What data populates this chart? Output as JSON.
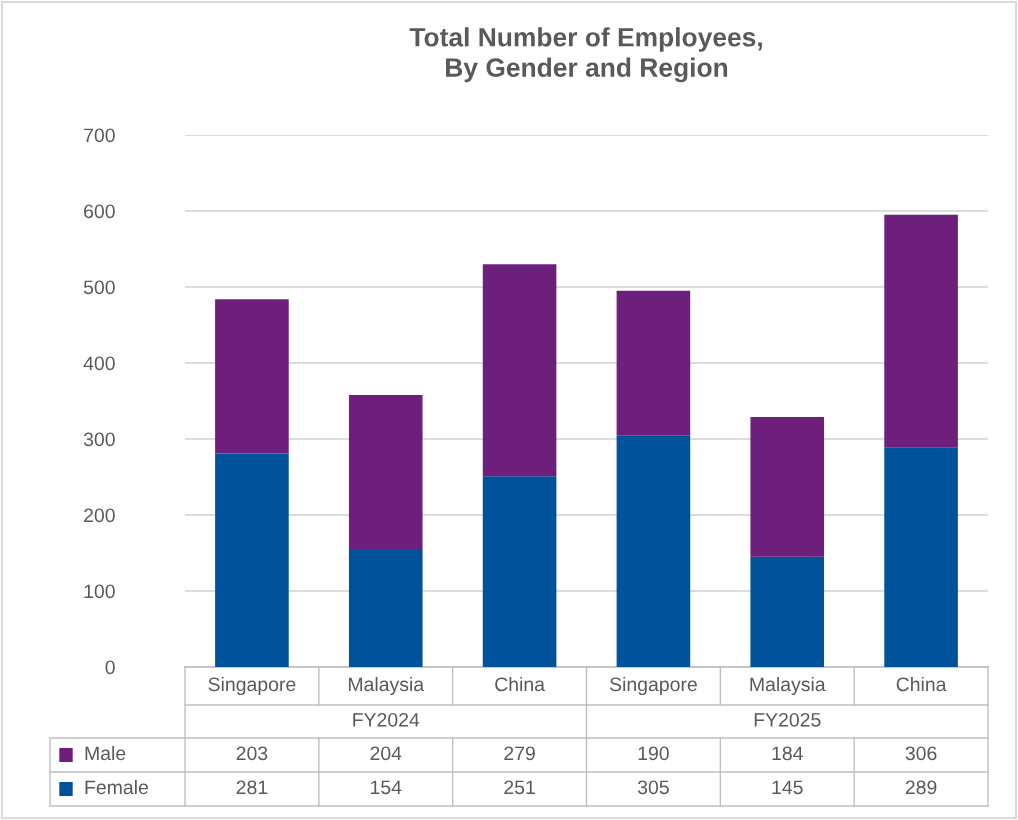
{
  "chart_data": {
    "type": "bar",
    "title": "Total Number of Employees,\nBy Gender and Region",
    "stacked": true,
    "categories": [
      "Singapore",
      "Malaysia",
      "China",
      "Singapore",
      "Malaysia",
      "China"
    ],
    "series": [
      {
        "name": "Female",
        "color": "#00529b",
        "values": [
          281,
          154,
          251,
          305,
          145,
          289
        ]
      },
      {
        "name": "Male",
        "color": "#6d1f7c",
        "values": [
          203,
          204,
          279,
          190,
          184,
          306
        ]
      }
    ],
    "annotations": [
      "FY2024",
      "FY2025"
    ],
    "ylim": [
      0,
      700
    ],
    "yticks": [
      0,
      100,
      200,
      300,
      400,
      500,
      600,
      700
    ],
    "grid": "y",
    "legend": "bottom",
    "data_labels": true
  }
}
